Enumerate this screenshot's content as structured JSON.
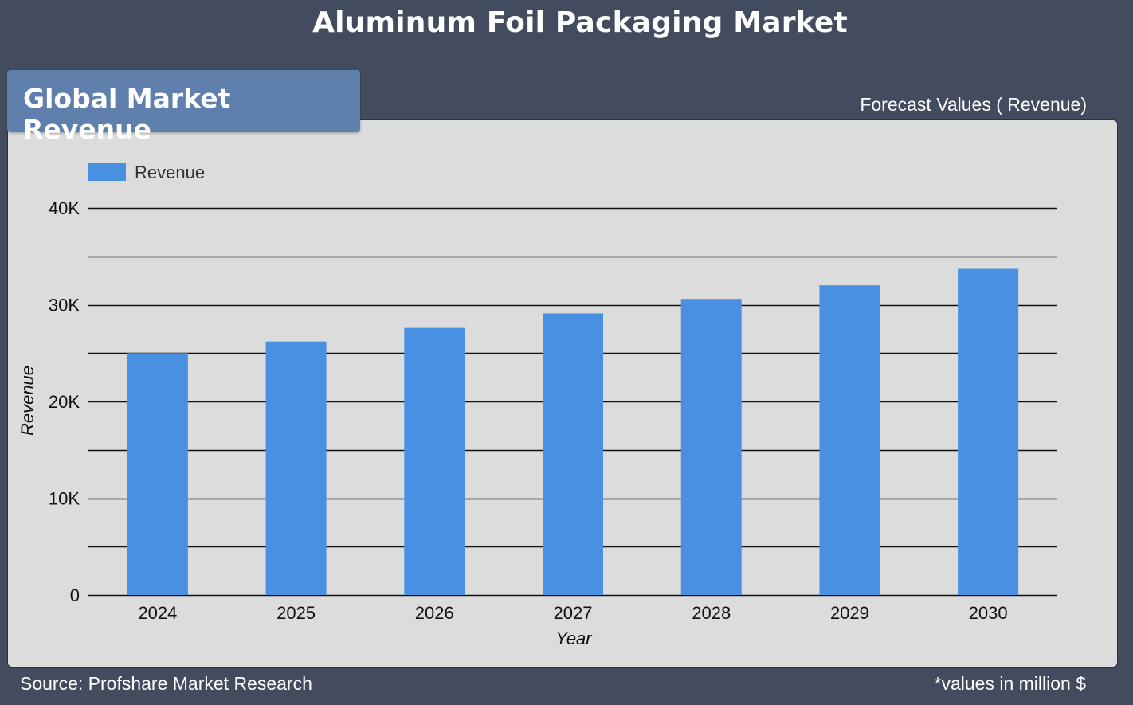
{
  "page": {
    "title": "Aluminum Foil Packaging Market",
    "section_title": "Global Market Revenue",
    "forecast_label": "Forecast Values ( Revenue)",
    "source": "Source: Profshare Market Research",
    "note": "*values in million $"
  },
  "colors": {
    "background": "#434b5e",
    "panel": "#dcdcdc",
    "section_tab": "#5f7fad",
    "bar": "#4a90e2"
  },
  "chart_data": {
    "type": "bar",
    "categories": [
      "2024",
      "2025",
      "2026",
      "2027",
      "2028",
      "2029",
      "2030"
    ],
    "series": [
      {
        "name": "Revenue",
        "values": [
          25000,
          26200,
          27600,
          29100,
          30600,
          32000,
          33700
        ]
      }
    ],
    "xlabel": "Year",
    "ylabel": "Revenue",
    "ylim": [
      0,
      40000
    ],
    "yticks": [
      0,
      10000,
      20000,
      30000,
      40000
    ],
    "ytick_labels": [
      "0",
      "10K",
      "20K",
      "30K",
      "40K"
    ],
    "grid": true,
    "minor_grid": true,
    "legend_position": "top-left"
  }
}
